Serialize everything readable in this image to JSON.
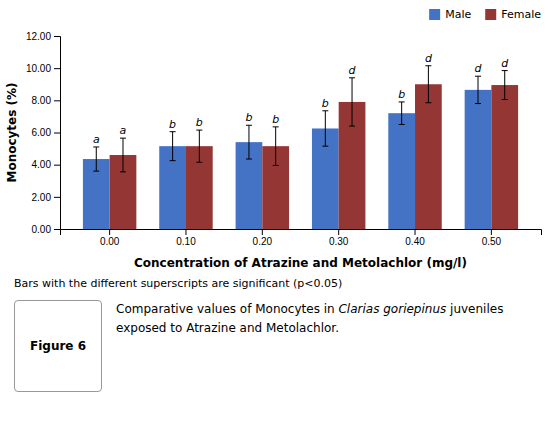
{
  "chart_data": {
    "type": "bar",
    "categories": [
      "0.00",
      "0.10",
      "0.20",
      "0.30",
      "0.40",
      "0.50"
    ],
    "series": [
      {
        "name": "Male",
        "color": "#4472C4",
        "values": [
          4.35,
          5.15,
          5.4,
          6.25,
          7.2,
          8.65
        ],
        "errors": [
          0.75,
          0.9,
          1.05,
          1.1,
          0.7,
          0.85
        ],
        "superscripts": [
          "a",
          "b",
          "b",
          "b",
          "b",
          "d"
        ]
      },
      {
        "name": "Female",
        "color": "#943634",
        "values": [
          4.6,
          5.15,
          5.15,
          7.9,
          9.0,
          8.95
        ],
        "errors": [
          1.05,
          1.0,
          1.2,
          1.5,
          1.15,
          0.9
        ],
        "superscripts": [
          "a",
          "b",
          "b",
          "d",
          "d",
          "d"
        ]
      }
    ],
    "ylabel": "Monocytes (%)",
    "xlabel": "Concentration of Atrazine and Metolachlor (mg/l)",
    "ylim": [
      0,
      12.0
    ],
    "yticks": [
      {
        "value": 0.0,
        "label": "0.00"
      },
      {
        "value": 2.0,
        "label": "2.00"
      },
      {
        "value": 4.0,
        "label": "4.00"
      },
      {
        "value": 6.0,
        "label": "6.00"
      },
      {
        "value": 8.0,
        "label": "8.00"
      },
      {
        "value": 10.0,
        "label": "10.00"
      },
      {
        "value": 12.0,
        "label": "12.00"
      }
    ],
    "grid": false,
    "legend": "top-right",
    "note": "Bars with the different superscripts are significant (p<0.05)",
    "figure_label": "Figure 6",
    "caption": [
      "Comparative values of Monocytes in ",
      "Clarias goriepinus",
      " juveniles exposed to Atrazine and Metolachlor."
    ]
  }
}
